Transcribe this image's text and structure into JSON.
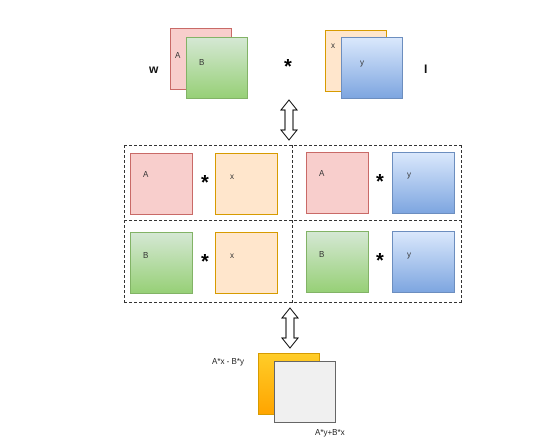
{
  "top": {
    "left_operand": "w",
    "right_operand": "I",
    "operator": "*",
    "labels": {
      "a": "A",
      "b": "B",
      "x": "x",
      "y": "y"
    }
  },
  "grid": {
    "operator": "*",
    "cells": [
      {
        "left": "A",
        "right": "x"
      },
      {
        "left": "A",
        "right": "y"
      },
      {
        "left": "B",
        "right": "x"
      },
      {
        "left": "B",
        "right": "y"
      }
    ]
  },
  "result": {
    "top_label": "A*x - B*y",
    "bottom_label": "A*y+B*x"
  }
}
